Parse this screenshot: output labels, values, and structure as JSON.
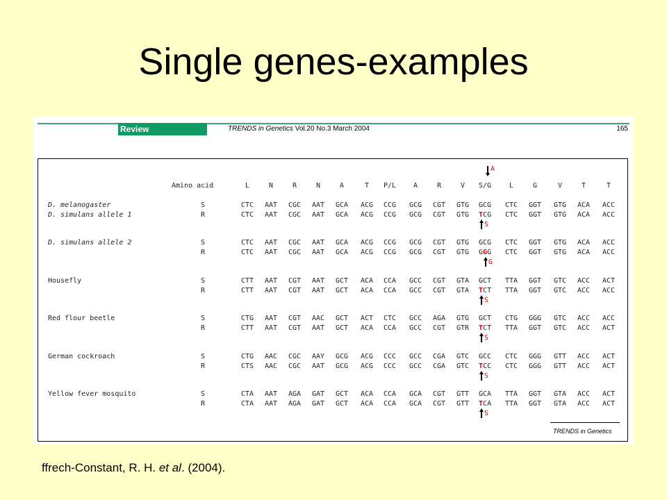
{
  "slide": {
    "title": "Single genes-examples",
    "citation_prefix": "ffrech-Constant, R. H. ",
    "citation_italic": "et al",
    "citation_suffix": ". (2004)."
  },
  "figure": {
    "header": {
      "tag": "Review",
      "journal_name": "TRENDS in Genetics",
      "issue": "Vol.20 No.3 March 2004",
      "page": "165"
    },
    "source_label": "TRENDS in Genetics",
    "table": {
      "amino_acid_label": "Amino acid",
      "amino_acids": [
        "L",
        "N",
        "R",
        "N",
        "A",
        "T",
        "P/L",
        "A",
        "R",
        "V",
        "S/G",
        "L",
        "G",
        "V",
        "T",
        "T"
      ],
      "top_annotation": "A",
      "groups": [
        {
          "species": "D. melanogaster",
          "italic": true,
          "rows": [
            {
              "aa": "S",
              "codons": [
                "CTC",
                "AAT",
                "CGC",
                "AAT",
                "GCA",
                "ACG",
                "CCG",
                "GCG",
                "CGT",
                "GTG",
                "GCG",
                "CTC",
                "GGT",
                "GTG",
                "ACA",
                "ACC"
              ]
            }
          ]
        },
        {
          "species": "D. simulans allele 1",
          "italic": true,
          "rows": [
            {
              "aa": "R",
              "codons": [
                "CTC",
                "AAT",
                "CGC",
                "AAT",
                "GCA",
                "ACG",
                "CCG",
                "GCG",
                "CGT",
                "GTG",
                "TCG",
                "CTC",
                "GGT",
                "GTG",
                "ACA",
                "ACC"
              ],
              "mutation": {
                "pos": 0,
                "letter": "S"
              }
            }
          ]
        },
        {
          "species": "D. simulans allele 2",
          "italic": true,
          "rows": [
            {
              "aa": "S",
              "codons": [
                "CTC",
                "AAT",
                "CGC",
                "AAT",
                "GCA",
                "ACG",
                "CCG",
                "GCG",
                "CGT",
                "GTG",
                "GCG",
                "CTC",
                "GGT",
                "GTG",
                "ACA",
                "ACC"
              ]
            },
            {
              "aa": "R",
              "codons": [
                "CTC",
                "AAT",
                "CGC",
                "AAT",
                "GCA",
                "ACG",
                "CCG",
                "GCG",
                "CGT",
                "GTG",
                "GGG",
                "CTC",
                "GGT",
                "GTG",
                "ACA",
                "ACC"
              ],
              "mutation": {
                "pos": 1,
                "letter": "G"
              }
            }
          ]
        },
        {
          "species": "Housefly",
          "italic": false,
          "rows": [
            {
              "aa": "S",
              "codons": [
                "CTT",
                "AAT",
                "CGT",
                "AAT",
                "GCT",
                "ACA",
                "CCA",
                "GCC",
                "CGT",
                "GTA",
                "GCT",
                "TTA",
                "GGT",
                "GTC",
                "ACC",
                "ACT"
              ]
            },
            {
              "aa": "R",
              "codons": [
                "CTT",
                "AAT",
                "CGT",
                "AAT",
                "GCT",
                "ACA",
                "CCA",
                "GCC",
                "CGT",
                "GTA",
                "TCT",
                "TTA",
                "GGT",
                "GTC",
                "ACC",
                "ACC"
              ],
              "mutation": {
                "pos": 0,
                "letter": "S"
              }
            }
          ]
        },
        {
          "species": "Red flour beetle",
          "italic": false,
          "rows": [
            {
              "aa": "S",
              "codons": [
                "CTG",
                "AAT",
                "CGT",
                "AAC",
                "GCT",
                "ACT",
                "CTC",
                "GCC",
                "AGA",
                "GTG",
                "GCT",
                "CTG",
                "GGG",
                "GTC",
                "ACC",
                "ACC"
              ]
            },
            {
              "aa": "R",
              "codons": [
                "CTT",
                "AAT",
                "CGT",
                "AAT",
                "GCT",
                "ACA",
                "CCA",
                "GCC",
                "CGT",
                "GTR",
                "TCT",
                "TTA",
                "GGT",
                "GTC",
                "ACC",
                "ACT"
              ],
              "mutation": {
                "pos": 0,
                "letter": "S"
              }
            }
          ]
        },
        {
          "species": "German cockroach",
          "italic": false,
          "rows": [
            {
              "aa": "S",
              "codons": [
                "CTG",
                "AAC",
                "CGC",
                "AAY",
                "GCG",
                "ACG",
                "CCC",
                "GCC",
                "CGA",
                "GTC",
                "GCC",
                "CTC",
                "GGG",
                "GTT",
                "ACC",
                "ACT"
              ]
            },
            {
              "aa": "R",
              "codons": [
                "CTS",
                "AAC",
                "CGC",
                "AAT",
                "GCG",
                "ACG",
                "CCC",
                "GCC",
                "CGA",
                "GTC",
                "TCC",
                "CTC",
                "GGG",
                "GTT",
                "ACC",
                "ACT"
              ],
              "mutation": {
                "pos": 0,
                "letter": "S"
              }
            }
          ]
        },
        {
          "species": "Yellow fever mosquito",
          "italic": false,
          "rows": [
            {
              "aa": "S",
              "codons": [
                "CTA",
                "AAT",
                "AGA",
                "GAT",
                "GCT",
                "ACA",
                "CCA",
                "GCA",
                "CGT",
                "GTT",
                "GCA",
                "TTA",
                "GGT",
                "GTA",
                "ACC",
                "ACT"
              ]
            },
            {
              "aa": "R",
              "codons": [
                "CTA",
                "AAT",
                "AGA",
                "GAT",
                "GCT",
                "ACA",
                "CCA",
                "GCA",
                "CGT",
                "GTT",
                "TCA",
                "TTA",
                "GGT",
                "GTA",
                "ACC",
                "ACT"
              ],
              "mutation": {
                "pos": 0,
                "letter": "S"
              }
            }
          ]
        }
      ]
    }
  }
}
